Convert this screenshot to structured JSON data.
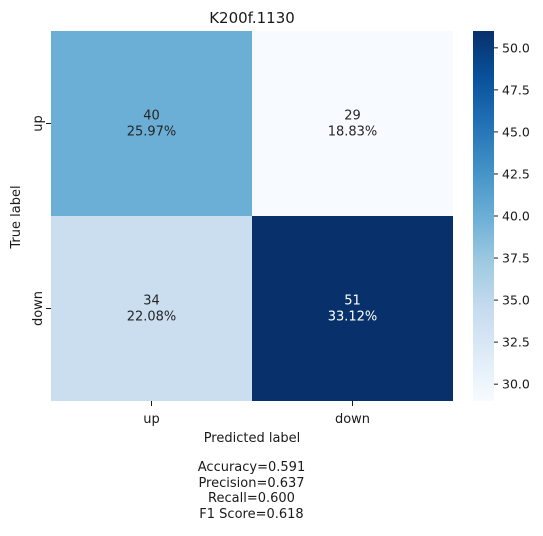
{
  "chart_data": {
    "type": "heatmap",
    "title": "K200f.1130",
    "xlabel": "Predicted label",
    "ylabel": "True label",
    "x_categories": [
      "up",
      "down"
    ],
    "y_categories": [
      "up",
      "down"
    ],
    "cells": [
      [
        {
          "count": "40",
          "percent": "25.97%",
          "value": 40
        },
        {
          "count": "29",
          "percent": "18.83%",
          "value": 29
        }
      ],
      [
        {
          "count": "34",
          "percent": "22.08%",
          "value": 34
        },
        {
          "count": "51",
          "percent": "33.12%",
          "value": 51
        }
      ]
    ],
    "colorbar": {
      "colormap": "Blues",
      "vmin": 29,
      "vmax": 51,
      "ticks": [
        "30.0",
        "32.5",
        "35.0",
        "37.5",
        "40.0",
        "42.5",
        "45.0",
        "47.5",
        "50.0"
      ]
    },
    "metrics": [
      "Accuracy=0.591",
      "Precision=0.637",
      "Recall=0.600",
      "F1 Score=0.618"
    ]
  }
}
